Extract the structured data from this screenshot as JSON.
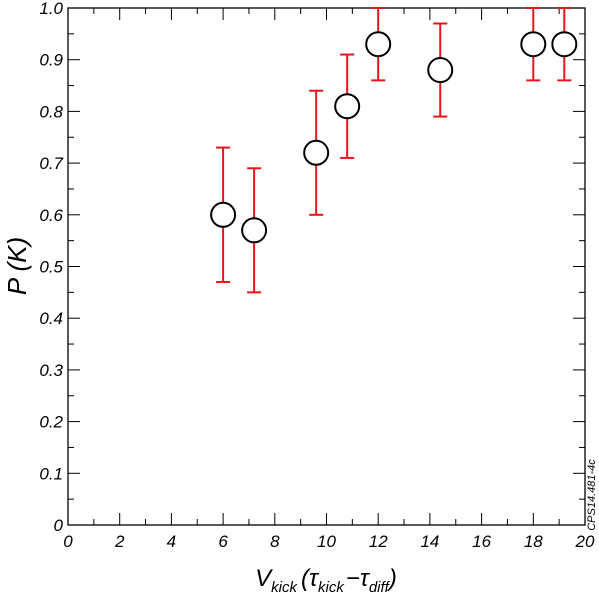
{
  "chart_data": {
    "type": "scatter",
    "xlim": [
      0,
      20
    ],
    "ylim": [
      0,
      1.0
    ],
    "x_ticks": [
      "0",
      "2",
      "4",
      "6",
      "8",
      "10",
      "12",
      "14",
      "16",
      "18",
      "20"
    ],
    "y_ticks": [
      "0",
      "0.1",
      "0.2",
      "0.3",
      "0.4",
      "0.5",
      "0.6",
      "0.7",
      "0.8",
      "0.9",
      "1.0"
    ],
    "grid": false,
    "xlabel": {
      "main": "V",
      "sub": "kick",
      "open": "(",
      "tau1": "τ",
      "tau1_sub": "kick",
      "minus": "−",
      "tau2": "τ",
      "tau2_sub": "diff",
      "close": ")"
    },
    "ylabel": "P (K)",
    "side_note": "CPS14.481-4c",
    "marker_color": "#000000",
    "errorbar_color": "#e8141c",
    "points": [
      {
        "x": 6.0,
        "y": 0.6,
        "low": 0.47,
        "high": 0.73
      },
      {
        "x": 7.2,
        "y": 0.57,
        "low": 0.45,
        "high": 0.69
      },
      {
        "x": 9.6,
        "y": 0.72,
        "low": 0.6,
        "high": 0.84
      },
      {
        "x": 10.8,
        "y": 0.81,
        "low": 0.71,
        "high": 0.91
      },
      {
        "x": 12.0,
        "y": 0.93,
        "low": 0.86,
        "high": 1.0
      },
      {
        "x": 14.4,
        "y": 0.88,
        "low": 0.79,
        "high": 0.97
      },
      {
        "x": 18.0,
        "y": 0.93,
        "low": 0.86,
        "high": 1.0
      },
      {
        "x": 19.2,
        "y": 0.93,
        "low": 0.86,
        "high": 1.0
      }
    ]
  }
}
